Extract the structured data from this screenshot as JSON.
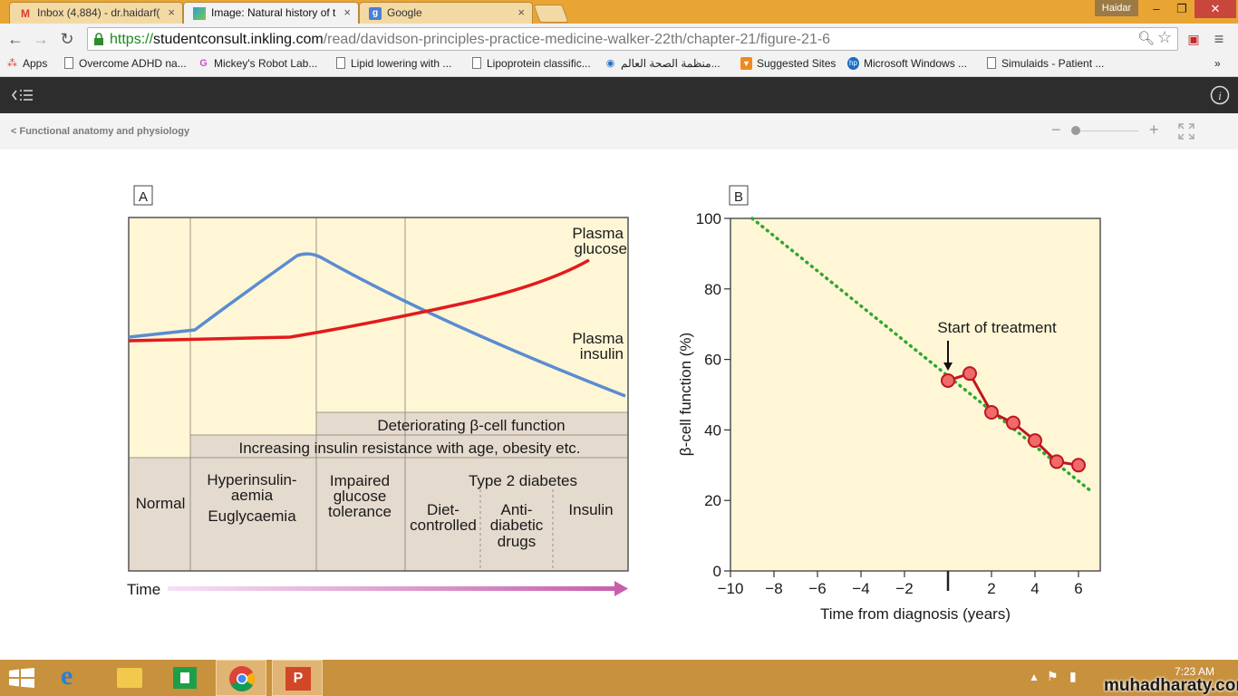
{
  "browser": {
    "tabs": [
      {
        "label": "Inbox (4,884) - dr.haidarf(",
        "icon": "gmail-icon",
        "active": false
      },
      {
        "label": "Image: Natural history of t",
        "icon": "inkling-icon",
        "active": true
      },
      {
        "label": "Google",
        "icon": "google-icon",
        "active": false
      }
    ],
    "user": "Haidar",
    "url_scheme": "https://",
    "url_host": "studentconsult.inkling.com",
    "url_path": "/read/davidson-principles-practice-medicine-walker-22th/chapter-21/figure-21-6",
    "bookmarks": [
      {
        "label": "Apps",
        "icon": "apps-grid-icon"
      },
      {
        "label": "Overcome ADHD na...",
        "icon": "page-icon"
      },
      {
        "label": "Mickey's Robot Lab...",
        "icon": "g-icon"
      },
      {
        "label": "Lipid lowering with ...",
        "icon": "page-icon"
      },
      {
        "label": "Lipoprotein classific...",
        "icon": "page-icon"
      },
      {
        "label": "منظمة الصحة العالم...",
        "icon": "who-icon"
      },
      {
        "label": "Suggested Sites",
        "icon": "suggested-icon"
      },
      {
        "label": "Microsoft Windows ...",
        "icon": "hp-icon"
      },
      {
        "label": "Simulaids - Patient ...",
        "icon": "page-icon"
      }
    ],
    "overflow": "»"
  },
  "app": {
    "breadcrumb": "< Functional anatomy and physiology",
    "zoom_minus": "−",
    "zoom_plus": "+",
    "zoom_level": 0.03
  },
  "figure": {
    "panel_a": {
      "label": "A",
      "curve_labels": {
        "glucose_1": "Plasma",
        "glucose_2": "glucose",
        "insulin_1": "Plasma",
        "insulin_2": "insulin"
      },
      "band_deteriorating": "Deteriorating β-cell function",
      "band_resistance": "Increasing insulin resistance with age, obesity etc.",
      "stages": {
        "normal": "Normal",
        "hyper_1": "Hyperinsulin-",
        "hyper_2": "aemia",
        "hyper_3": "Euglycaemia",
        "igt_1": "Impaired",
        "igt_2": "glucose",
        "igt_3": "tolerance",
        "t2d": "Type 2 diabetes",
        "diet_1": "Diet-",
        "diet_2": "controlled",
        "anti_1": "Anti-",
        "anti_2": "diabetic",
        "anti_3": "drugs",
        "insulin": "Insulin"
      },
      "time_label": "Time",
      "colors": {
        "glucose": "#e31a1c",
        "insulin": "#5b8cd0",
        "fill_upper": "#fff6d6",
        "fill_lower": "#e5dace"
      }
    },
    "panel_b": {
      "label": "B",
      "annotation": "Start of treatment"
    }
  },
  "chart_data": {
    "type": "line",
    "xlabel": "Time from diagnosis (years)",
    "ylabel": "β-cell function (%)",
    "xlim": [
      -10,
      7
    ],
    "ylim": [
      0,
      100
    ],
    "xticks": [
      -10,
      -8,
      -6,
      -4,
      -2,
      0,
      2,
      4,
      6
    ],
    "xtick_labels": [
      "−10",
      "−8",
      "−6",
      "−4",
      "−2",
      "",
      "2",
      "4",
      "6"
    ],
    "yticks": [
      0,
      20,
      40,
      60,
      80,
      100
    ],
    "grid": false,
    "series": [
      {
        "style": "dotted",
        "color": "#2ea82e",
        "x": [
          -9,
          6.5
        ],
        "y": [
          100,
          23
        ]
      },
      {
        "style": "line-markers",
        "color": "#c0161e",
        "marker_fill": "#ef6b6b",
        "x": [
          0,
          1,
          2,
          3,
          4,
          5,
          6
        ],
        "y": [
          54,
          56,
          45,
          42,
          37,
          31,
          30
        ]
      }
    ]
  },
  "taskbar": {
    "apps": [
      "start-button",
      "internet-explorer-icon",
      "file-explorer-icon",
      "store-icon",
      "chrome-icon",
      "powerpoint-icon"
    ],
    "clock": "7:23 AM",
    "watermark": "muhadharaty.com"
  }
}
